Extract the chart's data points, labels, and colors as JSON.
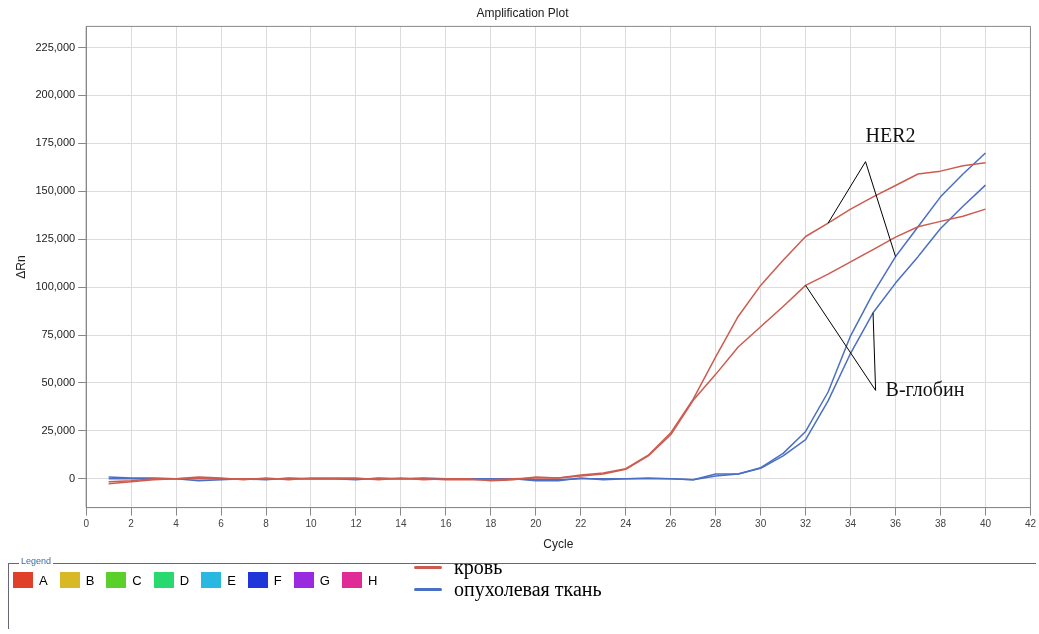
{
  "chart_data": {
    "type": "line",
    "title": "Amplification Plot",
    "xlabel": "Cycle",
    "ylabel": "ΔRn",
    "legend_title": "Legend",
    "x": [
      1,
      2,
      3,
      4,
      5,
      6,
      7,
      8,
      9,
      10,
      11,
      12,
      13,
      14,
      15,
      16,
      17,
      18,
      19,
      20,
      21,
      22,
      23,
      24,
      25,
      26,
      27,
      28,
      29,
      30,
      31,
      32,
      33,
      34,
      35,
      36,
      37,
      38,
      39,
      40
    ],
    "series": [
      {
        "name": "кровь",
        "color": "#cd5c50",
        "values": [
          -2500,
          -1500,
          -500,
          0,
          1000,
          500,
          -500,
          500,
          -500,
          500,
          500,
          500,
          -500,
          500,
          -500,
          0,
          0,
          -1000,
          -500,
          1000,
          500,
          2000,
          3000,
          5300,
          12300,
          24000,
          41600,
          63600,
          84700,
          100900,
          114000,
          126400,
          133400,
          140700,
          147100,
          153000,
          159000,
          160500,
          163300,
          164900
        ]
      },
      {
        "color": "#cd5c50",
        "values": [
          -1500,
          -1000,
          0,
          0,
          500,
          0,
          0,
          0,
          0,
          0,
          0,
          0,
          0,
          0,
          0,
          -500,
          -500,
          -500,
          0,
          500,
          500,
          1500,
          2500,
          5000,
          12000,
          23000,
          41000,
          54500,
          68800,
          79300,
          89900,
          100900,
          106800,
          113200,
          119600,
          126100,
          131500,
          134300,
          137000,
          140700
        ]
      },
      {
        "name": "опухолевая ткань",
        "color": "#4a6fc4",
        "values": [
          1000,
          500,
          500,
          0,
          -1000,
          -500,
          0,
          -500,
          500,
          0,
          0,
          -500,
          500,
          0,
          500,
          0,
          0,
          0,
          0,
          -1000,
          -1000,
          500,
          -500,
          0,
          500,
          0,
          -500,
          2500,
          2500,
          5800,
          13300,
          24700,
          45300,
          74600,
          96700,
          115900,
          131500,
          147100,
          159000,
          170000
        ]
      },
      {
        "color": "#4a6fc4",
        "values": [
          0,
          0,
          0,
          0,
          0,
          0,
          0,
          0,
          0,
          0,
          0,
          0,
          0,
          0,
          0,
          0,
          0,
          0,
          0,
          -500,
          -500,
          0,
          0,
          0,
          0,
          0,
          -500,
          1500,
          2500,
          5500,
          12000,
          20500,
          40700,
          65500,
          86600,
          102100,
          115900,
          130600,
          142200,
          153200
        ]
      }
    ],
    "xlim": [
      0,
      42
    ],
    "xticks": [
      0,
      2,
      4,
      6,
      8,
      10,
      12,
      14,
      16,
      18,
      20,
      22,
      24,
      26,
      28,
      30,
      32,
      34,
      36,
      38,
      40,
      42
    ],
    "ylim": [
      -15000,
      236000
    ],
    "yticks": [
      {
        "value": 0,
        "label": "0"
      },
      {
        "value": 25000,
        "label": "25,000"
      },
      {
        "value": 50000,
        "label": "50,000"
      },
      {
        "value": 75000,
        "label": "75,000"
      },
      {
        "value": 100000,
        "label": "100,000"
      },
      {
        "value": 125000,
        "label": "125,000"
      },
      {
        "value": 150000,
        "label": "150,000"
      },
      {
        "value": 175000,
        "label": "175,000"
      },
      {
        "value": 200000,
        "label": "200,000"
      },
      {
        "value": 225000,
        "label": "225,000"
      }
    ],
    "annotations": [
      {
        "text": "HER2",
        "x": 36,
        "y": 115900
      },
      {
        "text": "В-глобин",
        "x": 32,
        "y": 100900
      },
      "A",
      "B",
      "C",
      "D",
      "E",
      "F",
      "G",
      "H"
    ],
    "grid": true,
    "legend": "bottom",
    "marker": "none",
    "line_style": "solid"
  }
}
